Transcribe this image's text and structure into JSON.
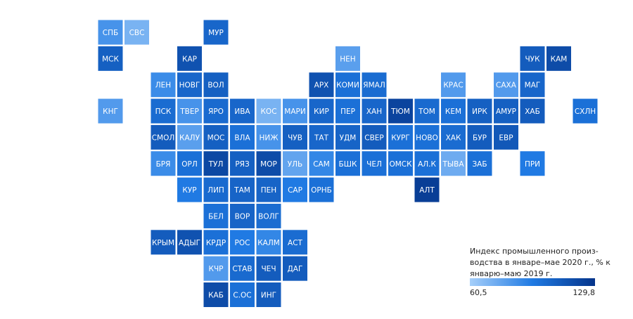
{
  "legend": {
    "title_lines": [
      "Индекс промышленного произ-",
      "водства в январе–мае 2020 г., % к",
      "январю–маю 2019 г."
    ],
    "min": {
      "value": 60.5,
      "label": "60,5"
    },
    "max": {
      "value": 129.8,
      "label": "129,8"
    },
    "colors": [
      "#a6cffa",
      "#1f7ae3",
      "#05348a"
    ]
  },
  "regions": [
    {
      "label": "СПБ",
      "value": 85
    },
    {
      "label": "СВС",
      "value": 72
    },
    {
      "label": "МУР",
      "value": 105
    },
    {
      "label": "МСК",
      "value": 108
    },
    {
      "label": "КАР",
      "value": 115
    },
    {
      "label": "НЕН",
      "value": 80
    },
    {
      "label": "ЧУК",
      "value": 110
    },
    {
      "label": "КАМ",
      "value": 118
    },
    {
      "label": "ЛЕН",
      "value": 88
    },
    {
      "label": "НОВГ",
      "value": 105
    },
    {
      "label": "ВОЛ",
      "value": 108
    },
    {
      "label": "АРХ",
      "value": 115
    },
    {
      "label": "КОМИ",
      "value": 100
    },
    {
      "label": "ЯМАЛ",
      "value": 102
    },
    {
      "label": "КРАС",
      "value": 82
    },
    {
      "label": "САХА",
      "value": 82
    },
    {
      "label": "МАГ",
      "value": 105
    },
    {
      "label": "КНГ",
      "value": 82
    },
    {
      "label": "ПСК",
      "value": 102
    },
    {
      "label": "ТВЕР",
      "value": 85
    },
    {
      "label": "ЯРО",
      "value": 103
    },
    {
      "label": "ИВА",
      "value": 105
    },
    {
      "label": "КОС",
      "value": 72
    },
    {
      "label": "МАРИ",
      "value": 85
    },
    {
      "label": "КИР",
      "value": 105
    },
    {
      "label": "ПЕР",
      "value": 100
    },
    {
      "label": "ХАН",
      "value": 105
    },
    {
      "label": "ТЮМ",
      "value": 122
    },
    {
      "label": "ТОМ",
      "value": 103
    },
    {
      "label": "КЕМ",
      "value": 100
    },
    {
      "label": "ИРК",
      "value": 108
    },
    {
      "label": "АМУР",
      "value": 108
    },
    {
      "label": "ХАБ",
      "value": 110
    },
    {
      "label": "СХЛН",
      "value": 100
    },
    {
      "label": "СМОЛ",
      "value": 110
    },
    {
      "label": "КАЛУ",
      "value": 80
    },
    {
      "label": "МОС",
      "value": 108
    },
    {
      "label": "ВЛА",
      "value": 100
    },
    {
      "label": "НИЖ",
      "value": 85
    },
    {
      "label": "ЧУВ",
      "value": 108
    },
    {
      "label": "ТАТ",
      "value": 105
    },
    {
      "label": "УДМ",
      "value": 106
    },
    {
      "label": "СВЕР",
      "value": 110
    },
    {
      "label": "КУРГ",
      "value": 100
    },
    {
      "label": "НОВО",
      "value": 100
    },
    {
      "label": "ХАК",
      "value": 102
    },
    {
      "label": "БУР",
      "value": 110
    },
    {
      "label": "ЕВР",
      "value": 112
    },
    {
      "label": "БРЯ",
      "value": 88
    },
    {
      "label": "ОРЛ",
      "value": 100
    },
    {
      "label": "ТУЛ",
      "value": 120
    },
    {
      "label": "РЯЗ",
      "value": 108
    },
    {
      "label": "МОР",
      "value": 118
    },
    {
      "label": "УЛЬ",
      "value": 78
    },
    {
      "label": "САМ",
      "value": 90
    },
    {
      "label": "БШК",
      "value": 100
    },
    {
      "label": "ЧЕЛ",
      "value": 100
    },
    {
      "label": "ОМСК",
      "value": 100
    },
    {
      "label": "АЛ.К",
      "value": 100
    },
    {
      "label": "ТЫВА",
      "value": 75
    },
    {
      "label": "ЗАБ",
      "value": 100
    },
    {
      "label": "ПРИ",
      "value": 95
    },
    {
      "label": "КУР",
      "value": 95
    },
    {
      "label": "ЛИП",
      "value": 103
    },
    {
      "label": "ТАМ",
      "value": 106
    },
    {
      "label": "ПЕН",
      "value": 106
    },
    {
      "label": "САР",
      "value": 95
    },
    {
      "label": "ОРНБ",
      "value": 100
    },
    {
      "label": "АЛТ",
      "value": 125
    },
    {
      "label": "БЕЛ",
      "value": 100
    },
    {
      "label": "ВОР",
      "value": 106
    },
    {
      "label": "ВОЛГ",
      "value": 102
    },
    {
      "label": "КРЫМ",
      "value": 110
    },
    {
      "label": "АДЫГ",
      "value": 115
    },
    {
      "label": "КРДР",
      "value": 100
    },
    {
      "label": "РОС",
      "value": 95
    },
    {
      "label": "КАЛМ",
      "value": 90
    },
    {
      "label": "АСТ",
      "value": 102
    },
    {
      "label": "КЧР",
      "value": 82
    },
    {
      "label": "СТАВ",
      "value": 103
    },
    {
      "label": "ЧЕЧ",
      "value": 110
    },
    {
      "label": "ДАГ",
      "value": 110
    },
    {
      "label": "КАБ",
      "value": 118
    },
    {
      "label": "С.ОС",
      "value": 100
    },
    {
      "label": "ИНГ",
      "value": 110
    }
  ]
}
